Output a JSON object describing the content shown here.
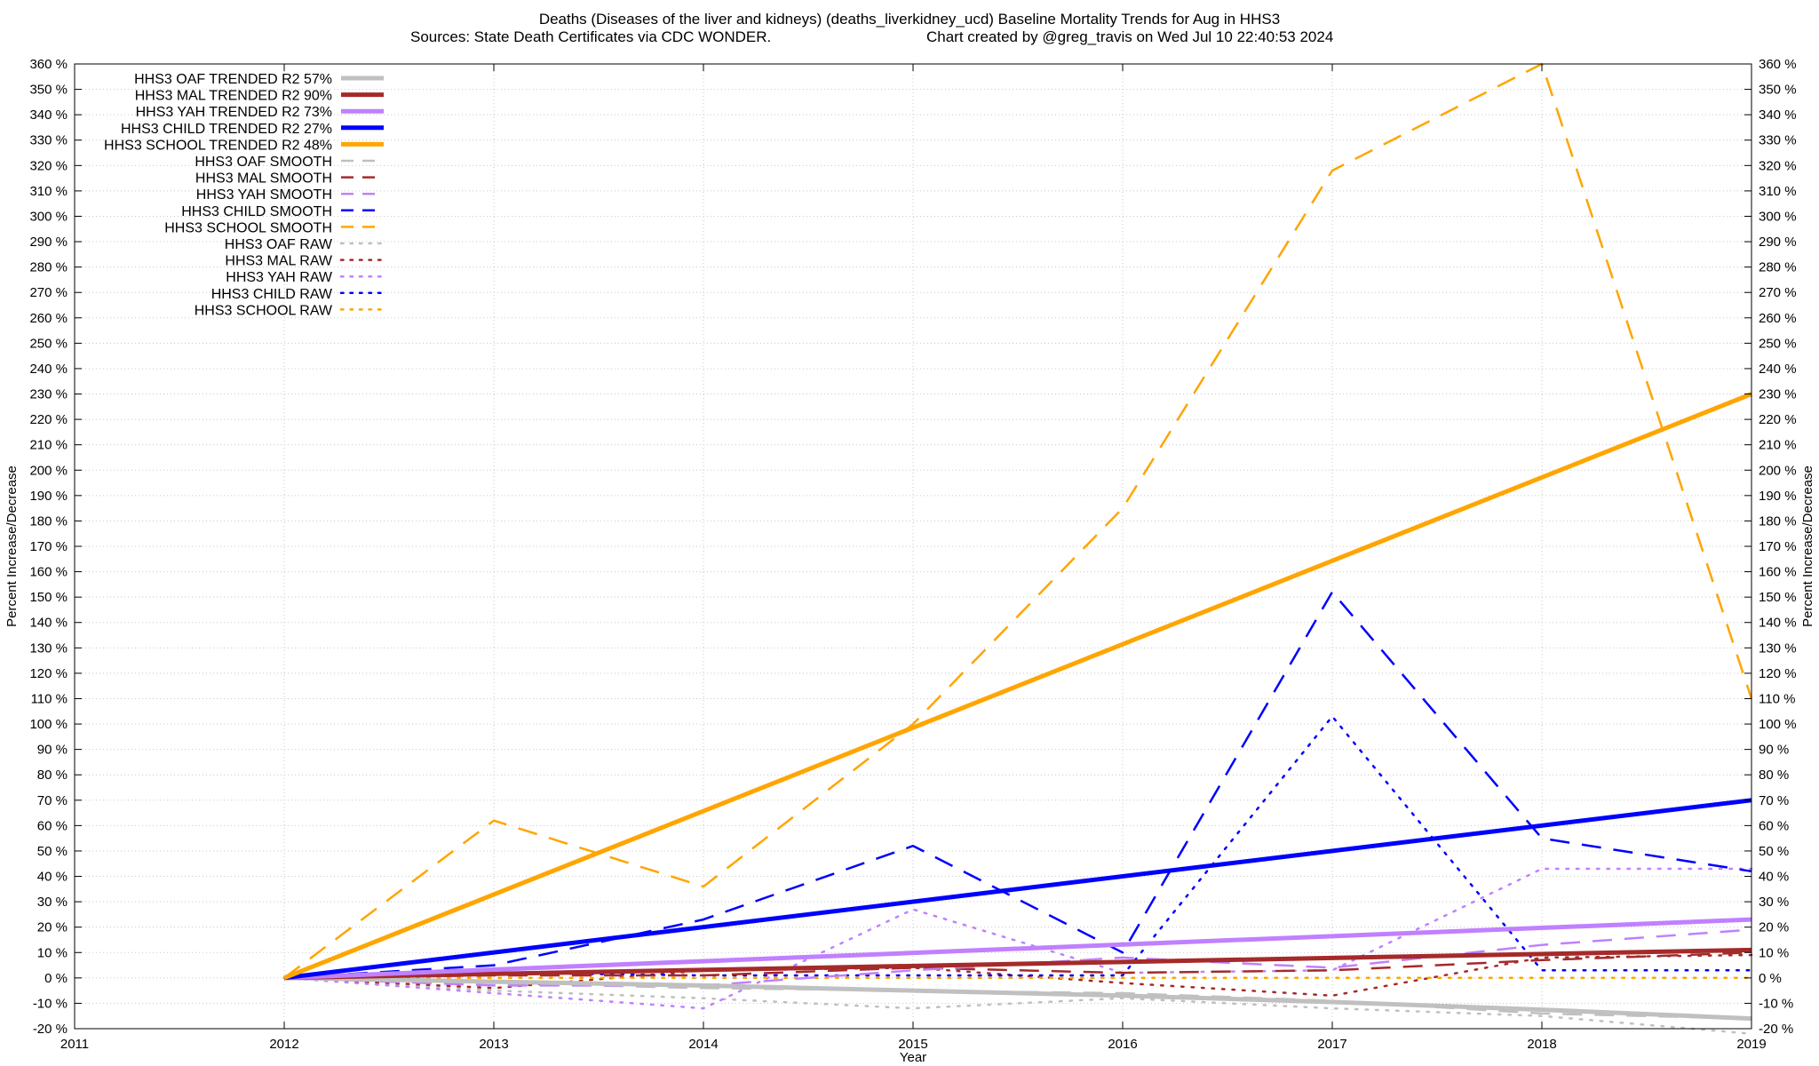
{
  "chart_data": {
    "type": "line",
    "title_line1": "Deaths (Diseases of the liver and kidneys) (deaths_liverkidney_ucd)  Baseline Mortality Trends for Aug in HHS3",
    "title_line2_left": "Sources: State Death Certificates via CDC WONDER.",
    "title_line2_right": "Chart created by @greg_travis on Wed Jul 10 22:40:53 2024",
    "xlabel": "Year",
    "ylabel_left": "Percent Increase/Decrease",
    "ylabel_right": "Percent Increase/Decrease",
    "xlim": [
      2011,
      2019
    ],
    "ylim": [
      -20,
      360
    ],
    "x_ticks": [
      2011,
      2012,
      2013,
      2014,
      2015,
      2016,
      2017,
      2018,
      2019
    ],
    "x_tick_labels": [
      "2011",
      "2012",
      "2013",
      "2014",
      "2015",
      "2016",
      "2017",
      "2018",
      "2019"
    ],
    "y_ticks": [
      -20,
      -10,
      0,
      10,
      20,
      30,
      40,
      50,
      60,
      70,
      80,
      90,
      100,
      110,
      120,
      130,
      140,
      150,
      160,
      170,
      180,
      190,
      200,
      210,
      220,
      230,
      240,
      250,
      260,
      270,
      280,
      290,
      300,
      310,
      320,
      330,
      340,
      350,
      360
    ],
    "y_tick_labels": [
      "-20 %",
      "-10 %",
      "0 %",
      "10 %",
      "20 %",
      "30 %",
      "40 %",
      "50 %",
      "60 %",
      "70 %",
      "80 %",
      "90 %",
      "100 %",
      "110 %",
      "120 %",
      "130 %",
      "140 %",
      "150 %",
      "160 %",
      "170 %",
      "180 %",
      "190 %",
      "200 %",
      "210 %",
      "220 %",
      "230 %",
      "240 %",
      "250 %",
      "260 %",
      "270 %",
      "280 %",
      "290 %",
      "300 %",
      "310 %",
      "320 %",
      "330 %",
      "340 %",
      "350 %",
      "360 %"
    ],
    "grid": true,
    "legend_position": "top-left",
    "series": [
      {
        "name": "HHS3 OAF TRENDED R2  57%",
        "style": "solid-thick",
        "color": "#c0c0c0",
        "x": [
          2012,
          2013,
          2014,
          2015,
          2016,
          2017,
          2018,
          2019
        ],
        "values": [
          0,
          -1.5,
          -3,
          -5,
          -7,
          -9.5,
          -12.5,
          -16
        ]
      },
      {
        "name": "HHS3 MAL TRENDED R2  90%",
        "style": "solid-thick",
        "color": "#a52a2a",
        "x": [
          2012,
          2019
        ],
        "values": [
          0,
          11
        ]
      },
      {
        "name": "HHS3 YAH TRENDED R2  73%",
        "style": "solid-thick",
        "color": "#c080ff",
        "x": [
          2012,
          2019
        ],
        "values": [
          0,
          23
        ]
      },
      {
        "name": "HHS3 CHILD TRENDED R2  27%",
        "style": "solid-thick",
        "color": "#0000ff",
        "x": [
          2012,
          2019
        ],
        "values": [
          0,
          70
        ]
      },
      {
        "name": "HHS3 SCHOOL TRENDED R2  48%",
        "style": "solid-thick",
        "color": "#ffa500",
        "x": [
          2012,
          2019
        ],
        "values": [
          0,
          230
        ]
      },
      {
        "name": "HHS3 OAF SMOOTH",
        "style": "dashed",
        "color": "#c0c0c0",
        "x": [
          2012,
          2013,
          2014,
          2015,
          2016,
          2017,
          2018,
          2019
        ],
        "values": [
          0,
          -2,
          -4,
          -5,
          -6,
          -9,
          -14,
          -16
        ]
      },
      {
        "name": "HHS3 MAL SMOOTH",
        "style": "dashed",
        "color": "#a52a2a",
        "x": [
          2012,
          2013,
          2014,
          2015,
          2016,
          2017,
          2018,
          2019
        ],
        "values": [
          0,
          1,
          1,
          4,
          2,
          3,
          7,
          10
        ]
      },
      {
        "name": "HHS3 YAH SMOOTH",
        "style": "dashed",
        "color": "#c080ff",
        "x": [
          2012,
          2013,
          2014,
          2015,
          2016,
          2017,
          2018,
          2019
        ],
        "values": [
          0,
          -3,
          -3,
          3,
          8,
          4,
          13,
          19
        ]
      },
      {
        "name": "HHS3 CHILD SMOOTH",
        "style": "dashed",
        "color": "#0000ff",
        "x": [
          2012,
          2013,
          2014,
          2015,
          2016,
          2017,
          2018,
          2019
        ],
        "values": [
          0,
          5,
          23,
          52,
          10,
          152,
          55,
          42
        ]
      },
      {
        "name": "HHS3 SCHOOL SMOOTH",
        "style": "dashed",
        "color": "#ffa500",
        "x": [
          2012,
          2013,
          2014,
          2015,
          2016,
          2017,
          2018,
          2019
        ],
        "values": [
          0,
          62,
          36,
          100,
          185,
          318,
          360,
          110
        ]
      },
      {
        "name": "HHS3 OAF RAW",
        "style": "dotted",
        "color": "#c0c0c0",
        "x": [
          2012,
          2013,
          2014,
          2015,
          2016,
          2017,
          2018,
          2019
        ],
        "values": [
          0,
          -5,
          -8,
          -12,
          -8,
          -12,
          -15,
          -22
        ]
      },
      {
        "name": "HHS3 MAL RAW",
        "style": "dotted",
        "color": "#a52a2a",
        "x": [
          2012,
          2013,
          2014,
          2015,
          2016,
          2017,
          2018,
          2019
        ],
        "values": [
          0,
          -4,
          3,
          4,
          -2,
          -7,
          8,
          9
        ]
      },
      {
        "name": "HHS3 YAH RAW",
        "style": "dotted",
        "color": "#c080ff",
        "x": [
          2012,
          2013,
          2014,
          2015,
          2016,
          2017,
          2018,
          2019
        ],
        "values": [
          0,
          -6,
          -12,
          27,
          2,
          3,
          43,
          43
        ]
      },
      {
        "name": "HHS3 CHILD RAW",
        "style": "dotted",
        "color": "#0000ff",
        "x": [
          2012,
          2013,
          2014,
          2015,
          2016,
          2017,
          2018,
          2019
        ],
        "values": [
          0,
          2,
          1,
          1,
          1,
          103,
          3,
          3
        ]
      },
      {
        "name": "HHS3 SCHOOL RAW",
        "style": "dotted",
        "color": "#ffa500",
        "x": [
          2012,
          2013,
          2014,
          2015,
          2016,
          2017,
          2018,
          2019
        ],
        "values": [
          0,
          0,
          0,
          0,
          0,
          0,
          0,
          0
        ]
      }
    ]
  }
}
